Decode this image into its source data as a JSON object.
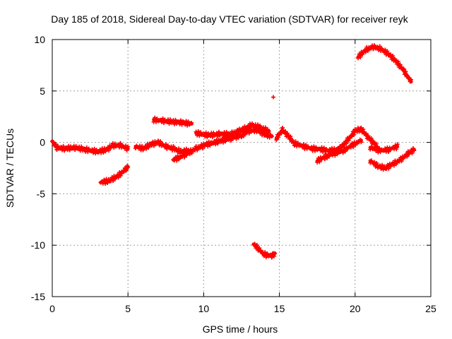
{
  "chart_data": {
    "type": "scatter",
    "title": "Day 185 of 2018, Sidereal Day-to-day VTEC variation (SDTVAR) for receiver reyk",
    "xlabel": "GPS time / hours",
    "ylabel": "SDTVAR / TECUs",
    "xlim": [
      0,
      25
    ],
    "ylim": [
      -15,
      10
    ],
    "xticks": [
      0,
      5,
      10,
      15,
      20,
      25
    ],
    "yticks": [
      -15,
      -10,
      -5,
      0,
      5,
      10
    ],
    "grid": true,
    "series_color": "#ff0000",
    "segments": [
      {
        "name": "main-early",
        "x": [
          0.0,
          0.3,
          0.8,
          1.5,
          2.2,
          3.0,
          3.6,
          4.0,
          4.5,
          5.0
        ],
        "y": [
          0.1,
          -0.5,
          -0.6,
          -0.5,
          -0.7,
          -0.9,
          -0.7,
          -0.3,
          -0.3,
          -0.6
        ]
      },
      {
        "name": "main-mid",
        "x": [
          5.5,
          6.0,
          6.5,
          7.0,
          7.5,
          8.0,
          8.5,
          9.0
        ],
        "y": [
          -0.4,
          -0.6,
          -0.2,
          0.0,
          -0.4,
          -0.6,
          -0.9,
          -0.8
        ]
      },
      {
        "name": "rise-to-noon",
        "x": [
          8.0,
          8.8,
          9.5,
          10.2,
          11.0,
          11.8,
          12.5,
          13.0,
          13.5,
          14.0,
          14.5
        ],
        "y": [
          -1.7,
          -1.2,
          -0.6,
          -0.2,
          0.1,
          0.4,
          0.7,
          1.1,
          1.2,
          0.8,
          0.6
        ]
      },
      {
        "name": "upper-noon",
        "x": [
          9.5,
          10.3,
          11.0,
          11.8,
          12.5,
          13.2,
          13.8,
          14.3
        ],
        "y": [
          0.9,
          0.7,
          0.8,
          0.8,
          1.2,
          1.7,
          1.4,
          1.1
        ]
      },
      {
        "name": "afternoon",
        "x": [
          14.8,
          15.2,
          15.6,
          16.0,
          16.6,
          17.2,
          17.8,
          18.4,
          19.0,
          19.5,
          20.0,
          20.4,
          20.8,
          21.2,
          21.6
        ],
        "y": [
          0.4,
          1.2,
          0.6,
          -0.1,
          -0.4,
          -0.6,
          -0.7,
          -0.8,
          -0.6,
          0.2,
          1.1,
          1.3,
          0.6,
          0.0,
          -0.7
        ]
      },
      {
        "name": "lower-afternoon",
        "x": [
          17.5,
          18.0,
          18.6,
          19.2,
          19.8,
          20.4
        ],
        "y": [
          -1.8,
          -1.4,
          -1.1,
          -0.8,
          -0.3,
          0.2
        ]
      },
      {
        "name": "late-low",
        "x": [
          21.0,
          21.6,
          22.2,
          22.8
        ],
        "y": [
          -0.5,
          -0.8,
          -0.7,
          -0.4
        ]
      },
      {
        "name": "dip-late",
        "x": [
          21.0,
          21.5,
          22.0,
          22.5,
          23.0,
          23.5,
          23.9
        ],
        "y": [
          -1.8,
          -2.3,
          -2.5,
          -2.1,
          -1.7,
          -1.1,
          -0.7
        ]
      },
      {
        "name": "early-low-arc",
        "x": [
          3.2,
          3.8,
          4.3,
          4.8,
          5.0
        ],
        "y": [
          -3.9,
          -3.7,
          -3.3,
          -2.7,
          -2.4
        ]
      },
      {
        "name": "upper-plateau",
        "x": [
          6.7,
          7.3,
          8.0,
          8.7,
          9.2
        ],
        "y": [
          2.2,
          2.1,
          2.0,
          1.9,
          1.8
        ]
      },
      {
        "name": "high-arc",
        "x": [
          20.2,
          20.7,
          21.2,
          21.7,
          22.2,
          22.7,
          23.2,
          23.7
        ],
        "y": [
          8.3,
          9.0,
          9.3,
          9.1,
          8.6,
          7.9,
          7.0,
          5.9
        ]
      },
      {
        "name": "deep-dip",
        "x": [
          13.3,
          13.6,
          13.9,
          14.2,
          14.5,
          14.7
        ],
        "y": [
          -9.9,
          -10.3,
          -10.8,
          -11.0,
          -11.0,
          -10.8
        ]
      }
    ],
    "outliers": [
      {
        "x": 14.6,
        "y": 4.4
      }
    ]
  }
}
